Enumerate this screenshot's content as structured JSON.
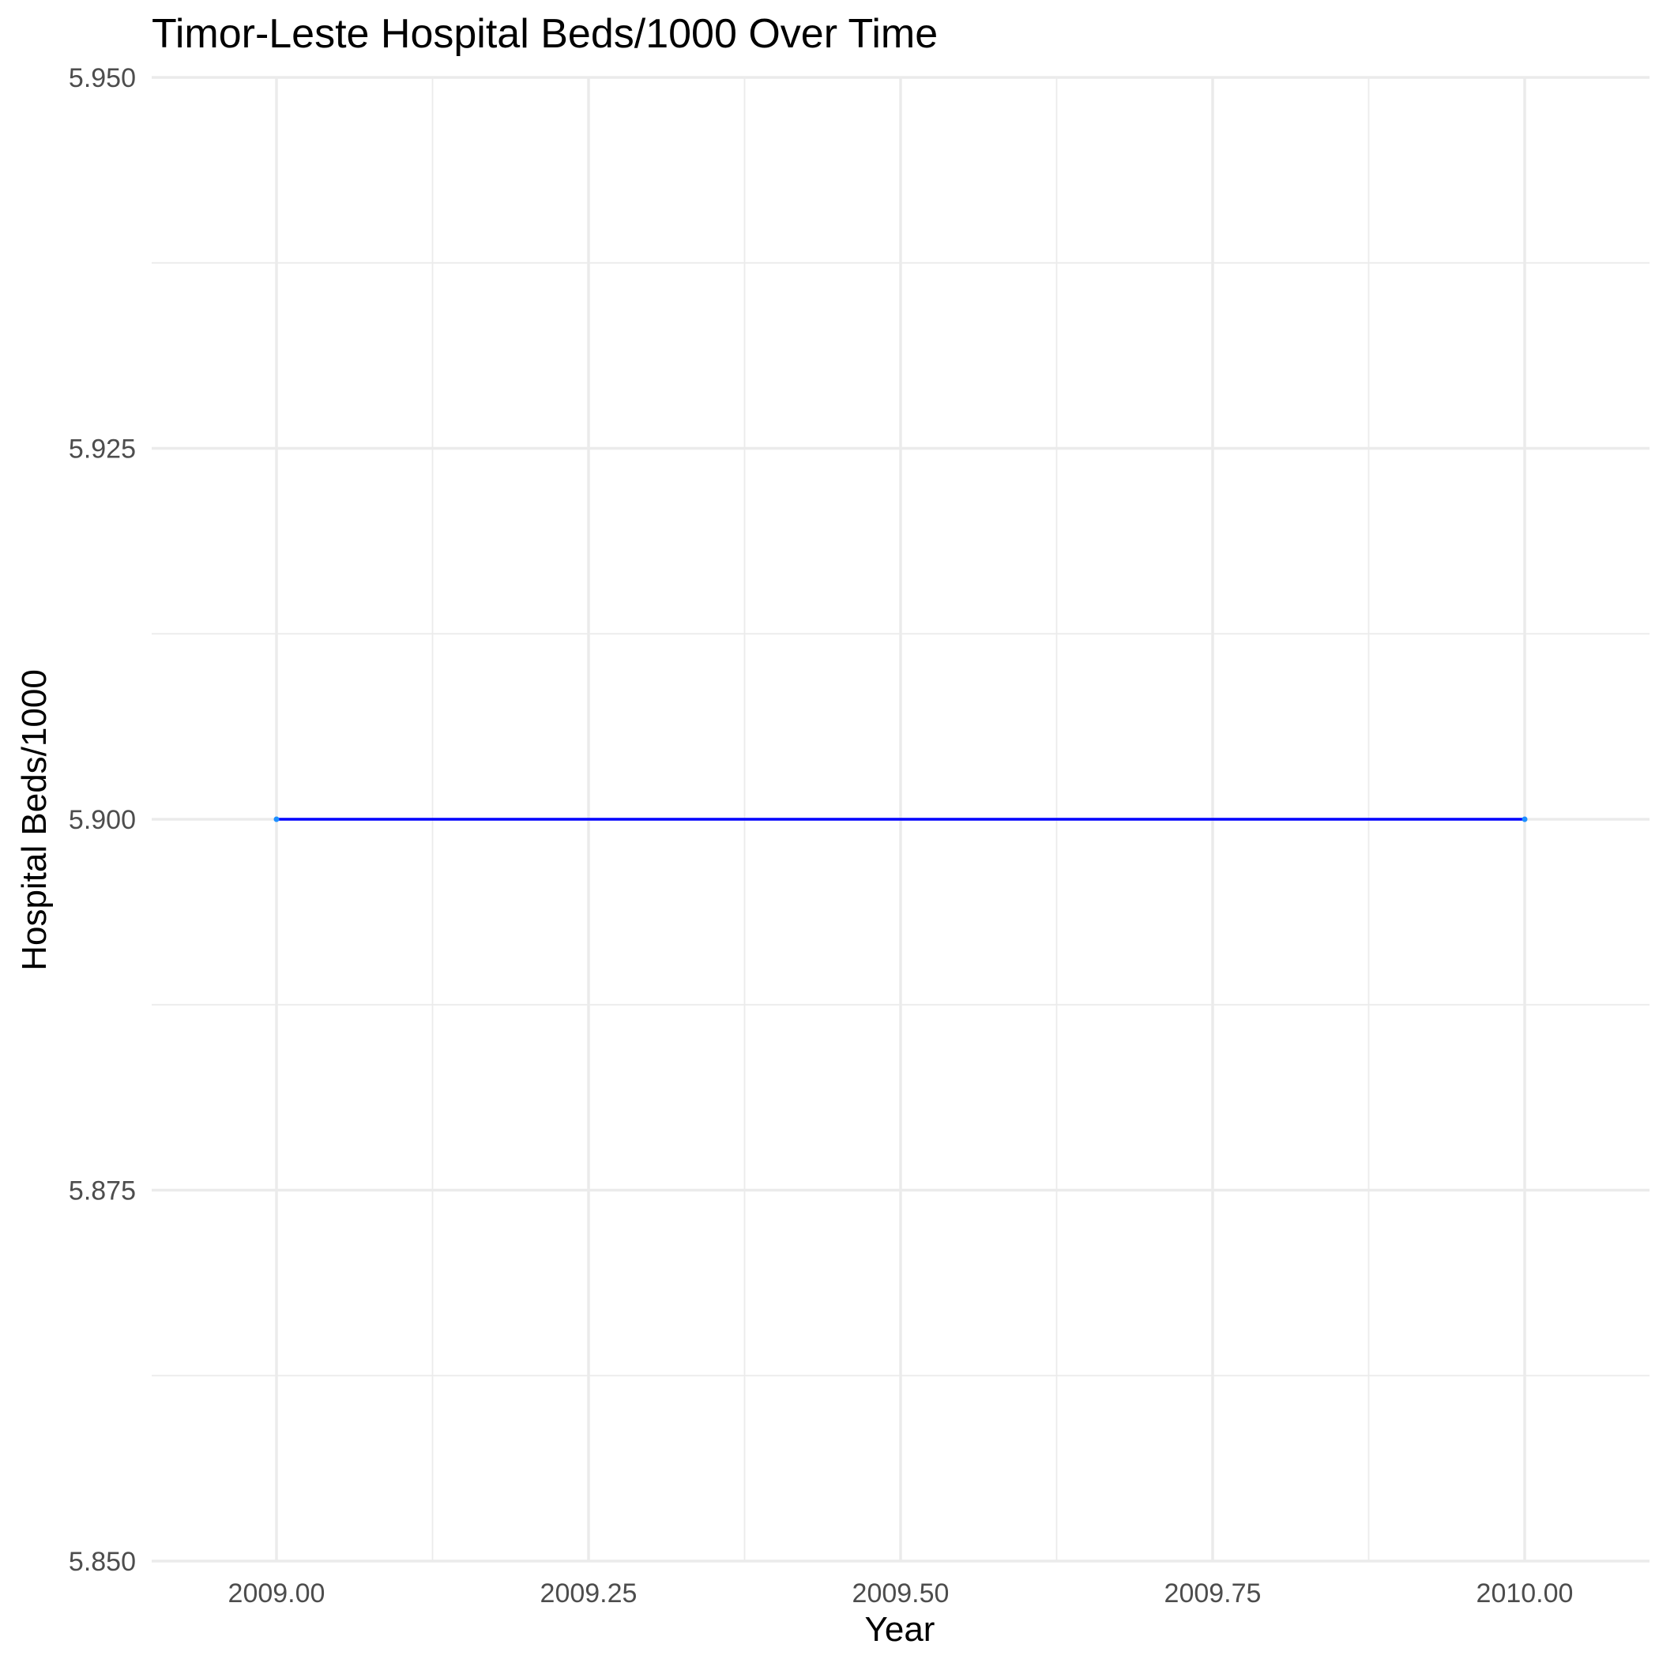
{
  "chart_data": {
    "type": "line",
    "title": "Timor-Leste Hospital Beds/1000 Over Time",
    "xlabel": "Year",
    "ylabel": "Hospital Beds/1000",
    "xlim": [
      2008.9,
      2010.1
    ],
    "ylim": [
      5.85,
      5.95
    ],
    "x_ticks": [
      2009.0,
      2009.25,
      2009.5,
      2009.75,
      2010.0
    ],
    "x_tick_labels": [
      "2009.00",
      "2009.25",
      "2009.50",
      "2009.75",
      "2010.00"
    ],
    "y_ticks": [
      5.85,
      5.875,
      5.9,
      5.925,
      5.95
    ],
    "y_tick_labels": [
      "5.850",
      "5.875",
      "5.900",
      "5.925",
      "5.950"
    ],
    "x": [
      2009,
      2010
    ],
    "values": [
      5.9,
      5.9
    ],
    "grid": true,
    "line_color": "#0000ff",
    "point_color": "#1e90ff"
  }
}
